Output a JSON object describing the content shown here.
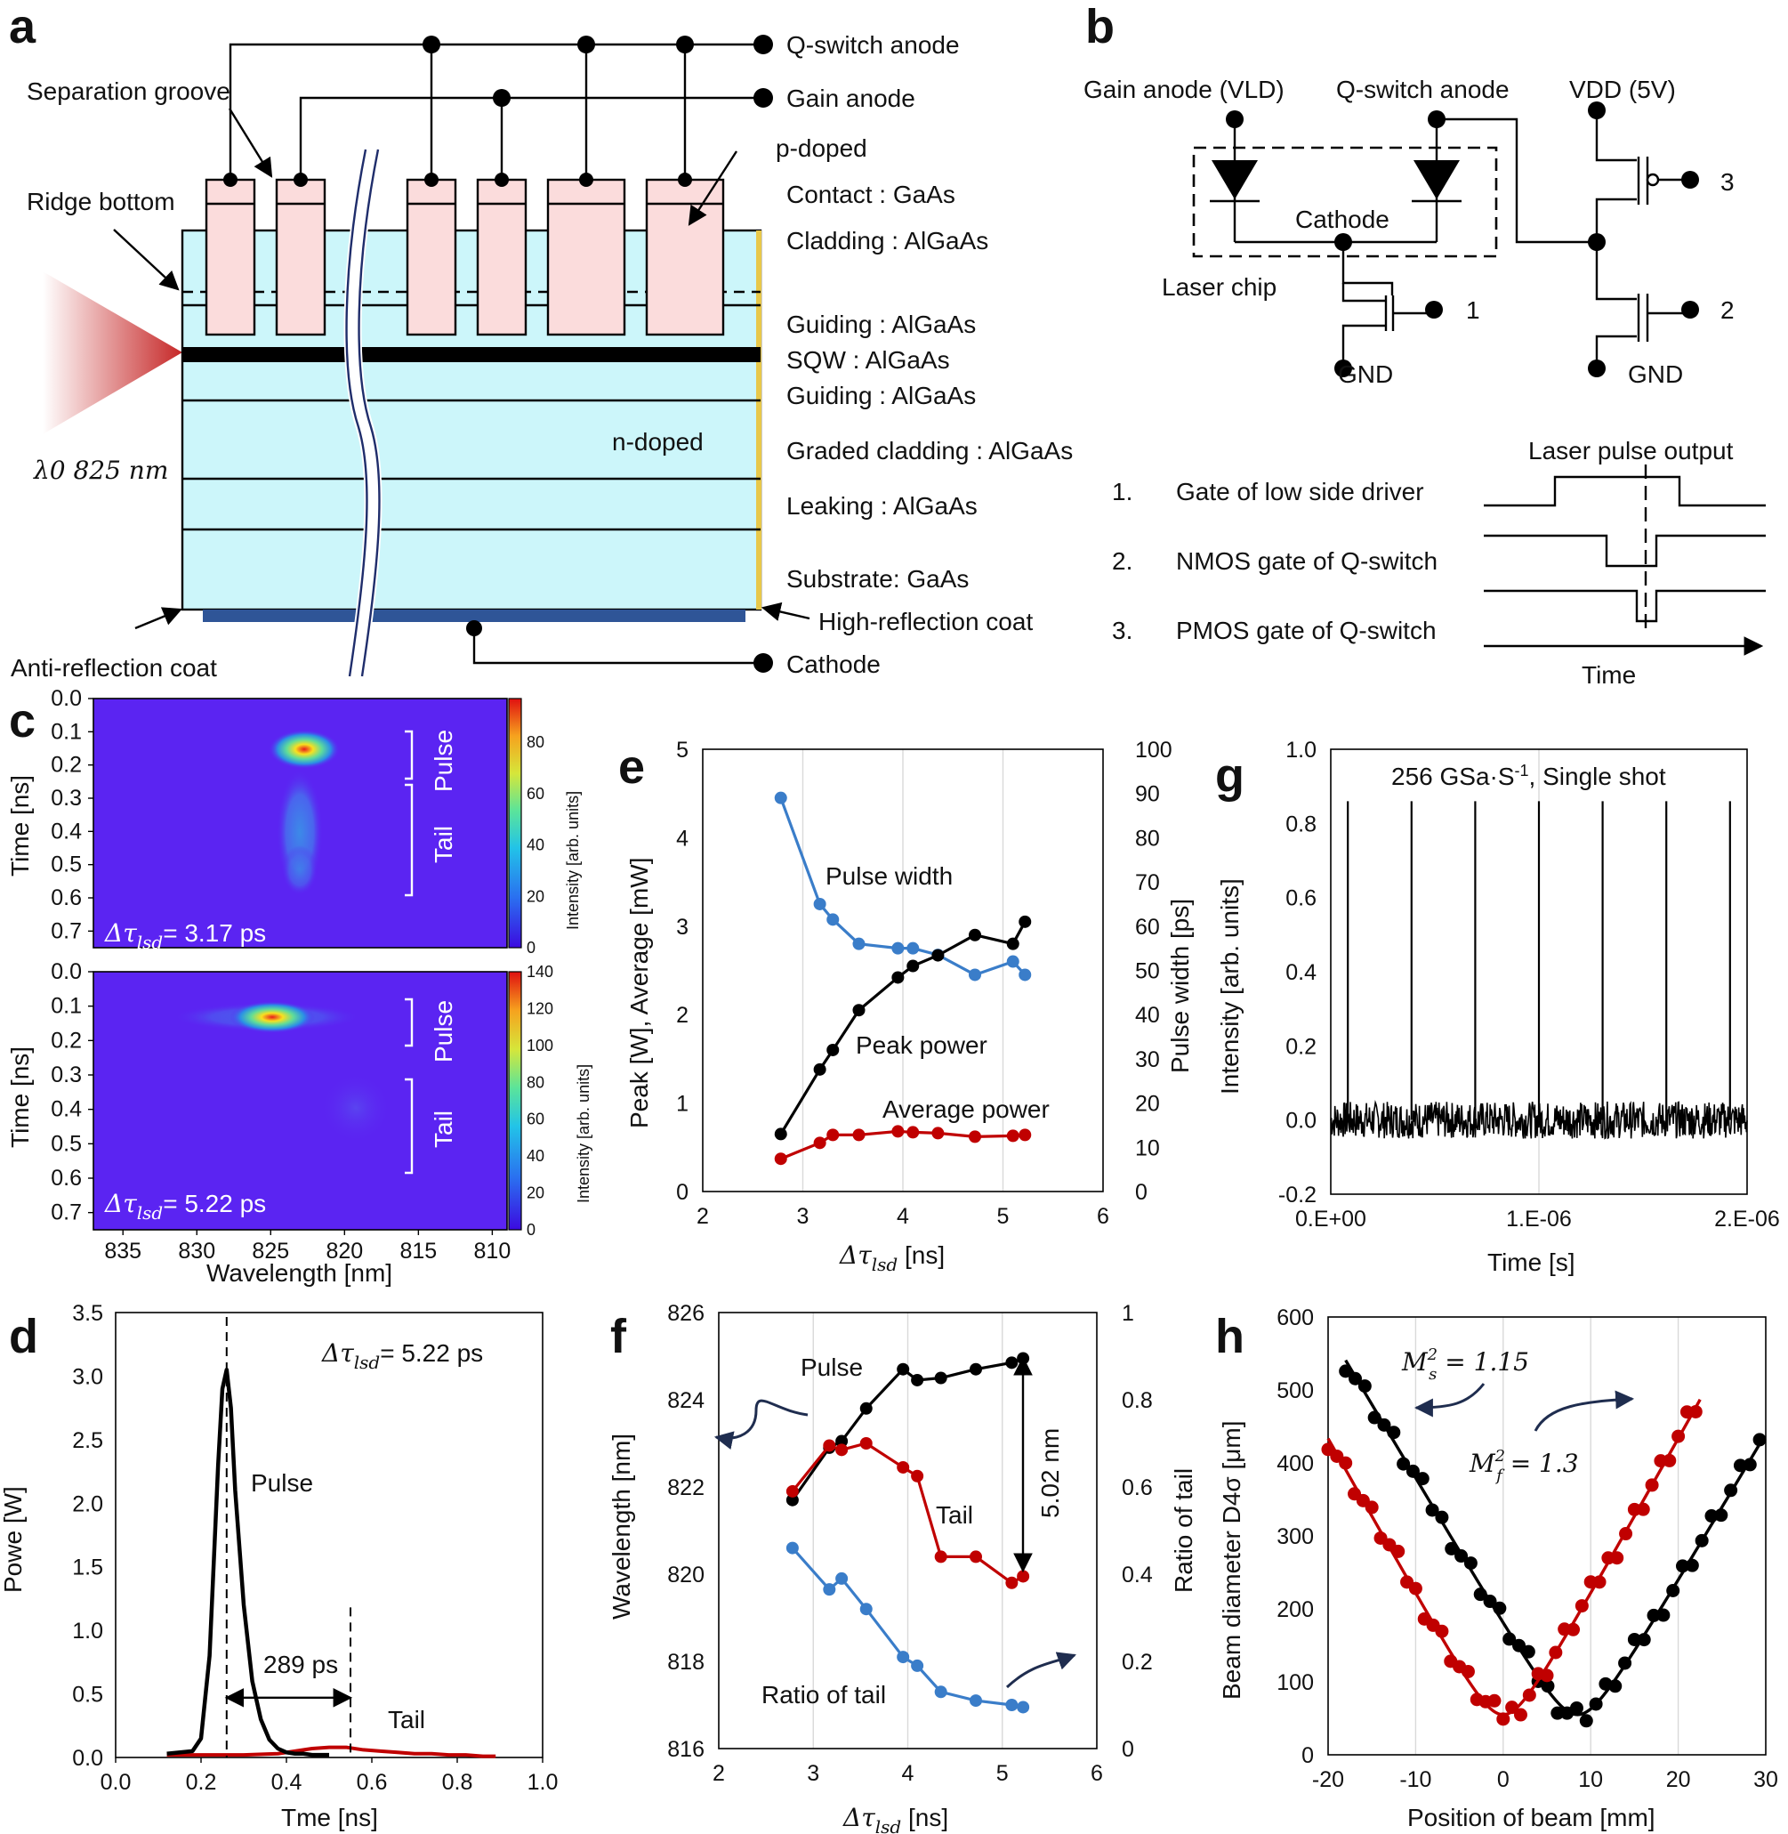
{
  "panel_a": {
    "letter": "a",
    "qswitch_anode": "Q-switch anode",
    "gain_anode": "Gain anode",
    "separation_groove": "Separation groove",
    "ridge_bottom": "Ridge bottom",
    "p_doped": "p-doped",
    "n_doped": "n-doped",
    "lambda": "λ0 825 nm",
    "layers": [
      "Contact : GaAs",
      "Cladding : AlGaAs",
      "Guiding : AlGaAs",
      "SQW : AlGaAs",
      "Guiding : AlGaAs",
      "Graded cladding : AlGaAs",
      "Leaking : AlGaAs",
      "Substrate: GaAs"
    ],
    "high_reflection": "High-reflection coat",
    "anti_reflection": "Anti-reflection coat",
    "cathode": "Cathode",
    "colors": {
      "contact": "#fbdcdc",
      "chip": "#ccf6fa",
      "beam": "#c62828",
      "coat": "#2f5597"
    }
  },
  "panel_b": {
    "letter": "b",
    "gain_anode": "Gain anode (VLD)",
    "qswitch_anode": "Q-switch anode",
    "vdd": "VDD (5V)",
    "cathode": "Cathode",
    "laser_chip": "Laser chip",
    "gnd": "GND",
    "gate_numbers": [
      "1",
      "2",
      "3"
    ],
    "laser_pulse_output": "Laser pulse output",
    "legend": [
      {
        "num": "1.",
        "text": "Gate of low side driver"
      },
      {
        "num": "2.",
        "text": "NMOS gate of Q-switch"
      },
      {
        "num": "3.",
        "text": "PMOS gate of Q-switch"
      }
    ],
    "time": "Time"
  },
  "panel_c": {
    "letter": "c",
    "ylabel": "Time [ns]",
    "xlabel": "Wavelength [nm]",
    "yticks": [
      "0.0",
      "0.1",
      "0.2",
      "0.3",
      "0.4",
      "0.5",
      "0.6",
      "0.7"
    ],
    "xticks": [
      "835",
      "830",
      "825",
      "820",
      "815",
      "810"
    ],
    "colorbar_label": "Intensity [arb. units]",
    "top": {
      "label": "Δτ",
      "sub": "lsd",
      "value": "= 3.17 ps",
      "cbar_ticks": [
        "0",
        "20",
        "40",
        "60",
        "80"
      ]
    },
    "bottom": {
      "label": "Δτ",
      "sub": "lsd",
      "value": "= 5.22 ps",
      "cbar_ticks": [
        "0",
        "20",
        "40",
        "60",
        "80",
        "100",
        "120",
        "140"
      ]
    },
    "pulse": "Pulse",
    "tail": "Tail",
    "colors": {
      "bg": "#5b24f2"
    }
  },
  "panel_d": {
    "letter": "d",
    "chart_data": {
      "type": "line",
      "xlabel": "Tme [ns]",
      "ylabel": "Powe [W]",
      "xlim": [
        0.0,
        1.0
      ],
      "ylim": [
        0.0,
        3.5
      ],
      "xticks": [
        "0.0",
        "0.2",
        "0.4",
        "0.6",
        "0.8",
        "1.0"
      ],
      "yticks": [
        "0.0",
        "0.5",
        "1.0",
        "1.5",
        "2.0",
        "2.5",
        "3.0",
        "3.5"
      ],
      "series": [
        {
          "name": "Pulse",
          "color": "#000000",
          "x": [
            0.12,
            0.18,
            0.2,
            0.22,
            0.24,
            0.25,
            0.26,
            0.27,
            0.28,
            0.3,
            0.32,
            0.34,
            0.36,
            0.38,
            0.4,
            0.42,
            0.44,
            0.46,
            0.48,
            0.5
          ],
          "y": [
            0.03,
            0.05,
            0.15,
            0.8,
            2.3,
            2.9,
            3.05,
            2.75,
            2.1,
            1.2,
            0.6,
            0.3,
            0.14,
            0.07,
            0.04,
            0.03,
            0.03,
            0.02,
            0.02,
            0.02
          ]
        },
        {
          "name": "Tail",
          "color": "#c00000",
          "x": [
            0.12,
            0.2,
            0.3,
            0.38,
            0.42,
            0.46,
            0.5,
            0.54,
            0.58,
            0.62,
            0.66,
            0.7,
            0.74,
            0.78,
            0.82,
            0.86,
            0.89
          ],
          "y": [
            0.02,
            0.02,
            0.02,
            0.03,
            0.05,
            0.07,
            0.08,
            0.08,
            0.06,
            0.05,
            0.04,
            0.03,
            0.03,
            0.02,
            0.02,
            0.01,
            0.01
          ]
        }
      ],
      "annotation": {
        "label": "Δτ",
        "sub": "lsd",
        "value": "= 5.22 ps"
      },
      "pulse_label": "Pulse",
      "tail_label": "Tail",
      "interval": "289 ps",
      "markers_x": [
        0.26,
        0.55
      ]
    }
  },
  "panel_e": {
    "letter": "e",
    "chart_data": {
      "type": "line",
      "xlabel": "Δτ",
      "xlabel_sub": "lsd",
      "xlabel_unit": " [ns]",
      "ylabel_left": "Peak [W], Average [mW]",
      "ylabel_right": "Pulse width [ps]",
      "xlim": [
        2,
        6
      ],
      "ylim_left": [
        0,
        5
      ],
      "ylim_right": [
        0,
        100
      ],
      "xticks": [
        "2",
        "3",
        "4",
        "5",
        "6"
      ],
      "yticks_left": [
        "0",
        "1",
        "2",
        "3",
        "4",
        "5"
      ],
      "yticks_right": [
        "0",
        "10",
        "20",
        "30",
        "40",
        "50",
        "60",
        "70",
        "80",
        "90",
        "100"
      ],
      "x": [
        2.78,
        3.17,
        3.3,
        3.56,
        3.95,
        4.1,
        4.35,
        4.72,
        5.1,
        5.22
      ],
      "series": [
        {
          "name": "Pulse width",
          "axis": "right",
          "color": "#3a7dc9",
          "values": [
            89,
            65,
            61.5,
            56,
            55,
            55,
            53.5,
            49,
            52,
            49
          ]
        },
        {
          "name": "Peak power",
          "axis": "left",
          "color": "#000000",
          "values": [
            0.65,
            1.38,
            1.6,
            2.05,
            2.42,
            2.55,
            2.67,
            2.9,
            2.8,
            3.05
          ]
        },
        {
          "name": "Average power",
          "axis": "left",
          "color": "#c00000",
          "values": [
            0.37,
            0.55,
            0.64,
            0.64,
            0.68,
            0.67,
            0.66,
            0.62,
            0.63,
            0.64
          ]
        }
      ]
    }
  },
  "panel_f": {
    "letter": "f",
    "chart_data": {
      "type": "line",
      "xlabel": "Δτ",
      "xlabel_sub": "lsd",
      "xlabel_unit": " [ns]",
      "ylabel_left": "Wavelength [nm]",
      "ylabel_right": "Ratio of tail",
      "xlim": [
        2,
        6
      ],
      "ylim_left": [
        816,
        826
      ],
      "ylim_right": [
        0,
        1
      ],
      "xticks": [
        "2",
        "3",
        "4",
        "5",
        "6"
      ],
      "yticks_left": [
        "816",
        "818",
        "820",
        "822",
        "824",
        "826"
      ],
      "yticks_right": [
        "0",
        "0.2",
        "0.4",
        "0.6",
        "0.8",
        "1"
      ],
      "x": [
        2.78,
        3.17,
        3.3,
        3.56,
        3.95,
        4.1,
        4.35,
        4.72,
        5.1,
        5.22
      ],
      "series": [
        {
          "name": "Pulse",
          "axis": "left",
          "color": "#000000",
          "values": [
            821.7,
            822.9,
            823.05,
            823.8,
            824.7,
            824.45,
            824.5,
            824.7,
            824.85,
            824.95
          ]
        },
        {
          "name": "Tail",
          "axis": "left",
          "color": "#c00000",
          "values": [
            821.9,
            822.95,
            822.85,
            823.0,
            822.45,
            822.25,
            820.4,
            820.4,
            819.8,
            819.95
          ]
        },
        {
          "name": "Ratio of tail",
          "axis": "right",
          "color": "#3a7dc9",
          "values": [
            0.46,
            0.365,
            0.39,
            0.32,
            0.21,
            0.19,
            0.13,
            0.11,
            0.1,
            0.095
          ]
        }
      ],
      "annotation": "5.02 nm"
    }
  },
  "panel_g": {
    "letter": "g",
    "chart_data": {
      "type": "line",
      "xlabel": "Time [s]",
      "ylabel": "Intensity [arb. units]",
      "xlim": [
        0,
        2e-06
      ],
      "ylim": [
        -0.2,
        1.0
      ],
      "xticks": [
        "0.E+00",
        "1.E-06",
        "2.E-06"
      ],
      "yticks": [
        "-0.2",
        "0.0",
        "0.2",
        "0.4",
        "0.6",
        "0.8",
        "1.0"
      ],
      "title": "256 GSa·S",
      "title_sup": "-1",
      "title_tail": ", Single shot",
      "pulse_times": [
        8.2e-08,
        3.88e-07,
        6.94e-07,
        1e-06,
        1.306e-06,
        1.612e-06,
        1.918e-06
      ],
      "pulse_height": 0.86,
      "noise_amplitude": 0.05
    }
  },
  "panel_h": {
    "letter": "h",
    "chart_data": {
      "type": "scatter",
      "xlabel": "Position of beam [mm]",
      "ylabel": "Beam diameter D4σ [μm]",
      "xlim": [
        -20,
        30
      ],
      "ylim": [
        0,
        600
      ],
      "xticks": [
        "-20",
        "-10",
        "0",
        "10",
        "20",
        "30"
      ],
      "yticks": [
        "0",
        "100",
        "200",
        "300",
        "400",
        "500",
        "600"
      ],
      "series": [
        {
          "name": "M_s^2 = 1.15",
          "color": "#000000",
          "vertex_x": 8.5,
          "vertex_y": 55,
          "slope": 20.3,
          "x_start": -18,
          "x_end": 29.6,
          "step": 1.1
        },
        {
          "name": "M_f^2 = 1.3",
          "color": "#c00000",
          "vertex_x": 0.0,
          "vertex_y": 55,
          "slope": 21.5,
          "x_start": -20,
          "x_end": 22.5,
          "step": 1.0
        }
      ],
      "ms_label": "M",
      "ms_sub": "s",
      "ms_value": " = 1.15",
      "mf_label": "M",
      "mf_sub": "f",
      "mf_value": " = 1.3",
      "sup": "2"
    }
  }
}
